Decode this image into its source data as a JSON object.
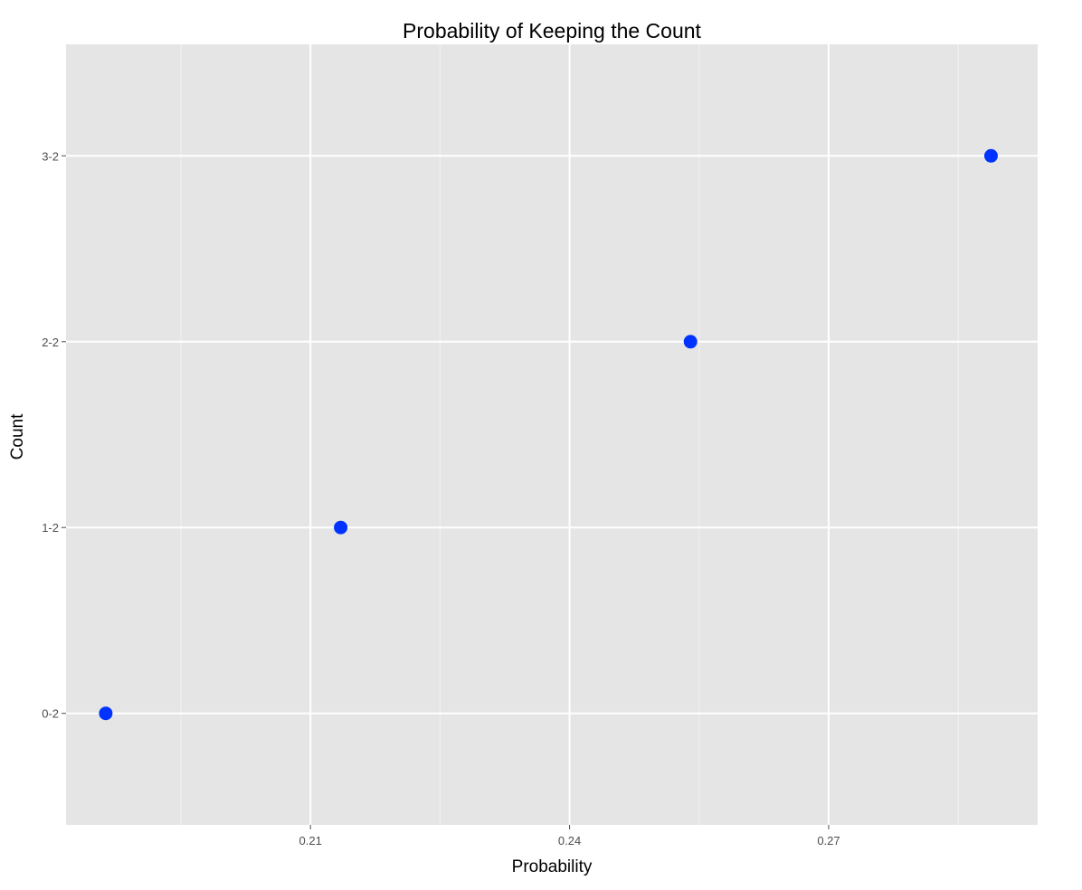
{
  "chart_data": {
    "type": "scatter",
    "title": "Probability of Keeping the Count",
    "xlabel": "Probability",
    "ylabel": "Count",
    "x_ticks": [
      0.21,
      0.24,
      0.27
    ],
    "x_tick_labels": [
      "0.21",
      "0.24",
      "0.27"
    ],
    "y_categories": [
      "0-2",
      "1-2",
      "2-2",
      "3-2"
    ],
    "xlim": [
      0.1817,
      0.2942
    ],
    "points": [
      {
        "y": "0-2",
        "x": 0.1863
      },
      {
        "y": "1-2",
        "x": 0.2135
      },
      {
        "y": "2-2",
        "x": 0.254
      },
      {
        "y": "3-2",
        "x": 0.2888
      }
    ],
    "grid": true,
    "point_color": "#0033ff",
    "panel_background": "#e5e5e5",
    "grid_major_color": "#ffffff",
    "grid_minor_color": "#f2f2f2",
    "tick_color": "#4d4d4d"
  }
}
